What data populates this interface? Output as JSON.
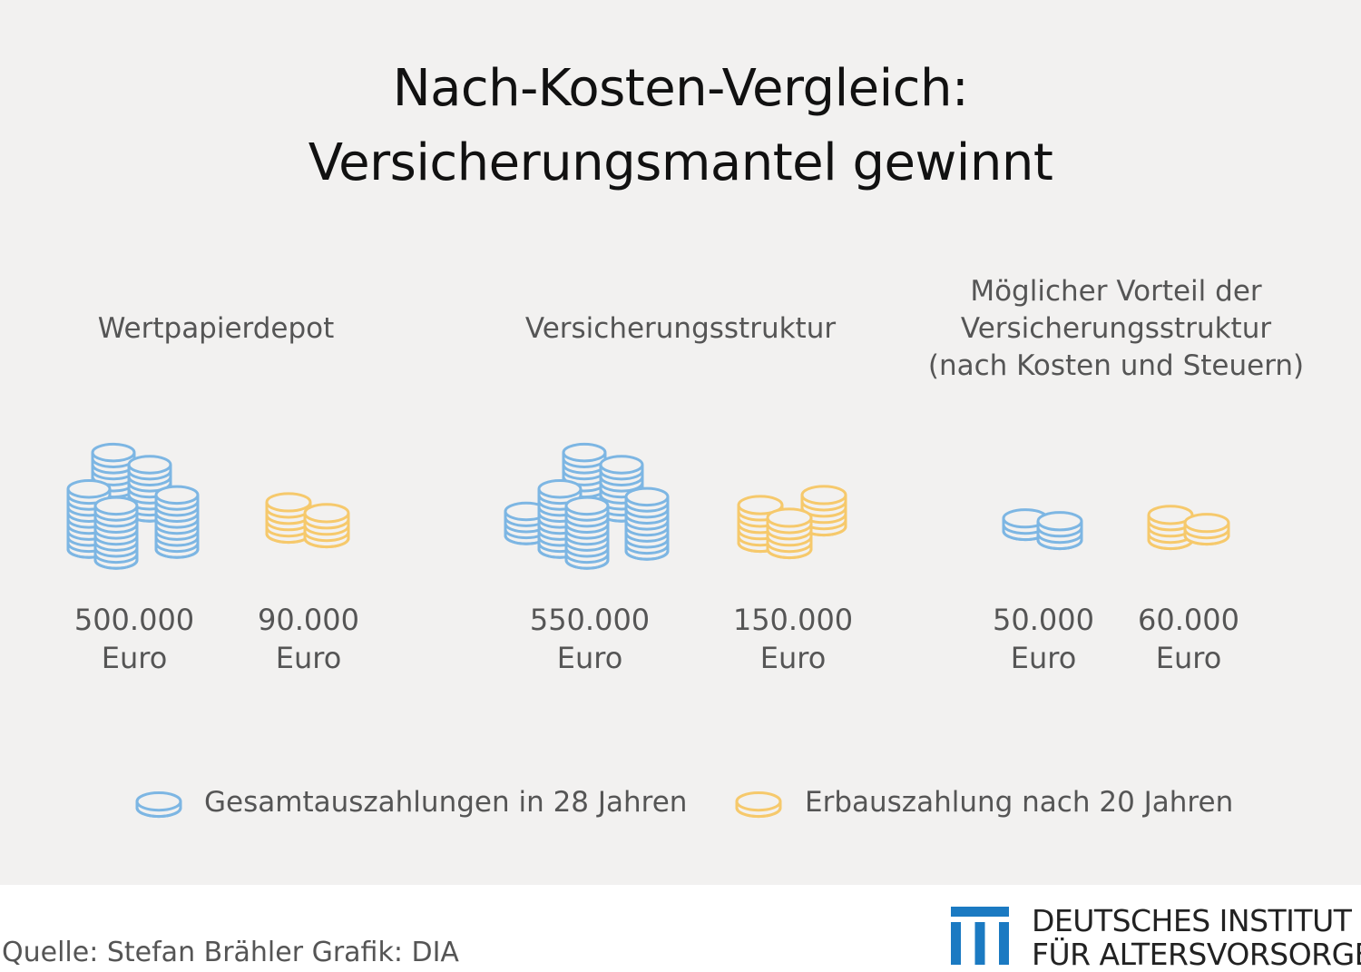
{
  "title_line1": "Nach-Kosten-Vergleich:",
  "title_line2": "Versicherungsmantel gewinnt",
  "chart_data": {
    "type": "pictograph",
    "unit": "Euro",
    "groups": [
      {
        "label_lines": [
          "Wertpapierdepot"
        ],
        "items": [
          {
            "series": "Gesamtauszahlungen in 28 Jahren",
            "value": 500000,
            "value_text": "500.000",
            "unit": "Euro"
          },
          {
            "series": "Erbauszahlung nach 20 Jahren",
            "value": 90000,
            "value_text": "90.000",
            "unit": "Euro"
          }
        ]
      },
      {
        "label_lines": [
          "Versicherungsstruktur"
        ],
        "items": [
          {
            "series": "Gesamtauszahlungen in 28 Jahren",
            "value": 550000,
            "value_text": "550.000",
            "unit": "Euro"
          },
          {
            "series": "Erbauszahlung nach 20 Jahren",
            "value": 150000,
            "value_text": "150.000",
            "unit": "Euro"
          }
        ]
      },
      {
        "label_lines": [
          "Möglicher Vorteil der",
          "Versicherungsstruktur",
          "(nach Kosten und Steuern)"
        ],
        "items": [
          {
            "series": "Gesamtauszahlungen in 28 Jahren",
            "value": 50000,
            "value_text": "50.000",
            "unit": "Euro"
          },
          {
            "series": "Erbauszahlung nach 20 Jahren",
            "value": 60000,
            "value_text": "60.000",
            "unit": "Euro"
          }
        ]
      }
    ],
    "legend": [
      {
        "label": "Gesamtauszahlungen in 28 Jahren",
        "color": "#7db6e3"
      },
      {
        "label": "Erbauszahlung nach 20 Jahren",
        "color": "#f6c96c"
      }
    ]
  },
  "colors": {
    "blue": "#7db6e3",
    "yellow": "#f6c96c",
    "panel": "#f2f1f0",
    "logo_blue": "#1b7ac2"
  },
  "footer": {
    "source": "Quelle: Stefan Brähler  Grafik: DIA",
    "logo_line1": "DEUTSCHES INSTITUT",
    "logo_line2": "FÜR ALTERSVORSORGE"
  }
}
